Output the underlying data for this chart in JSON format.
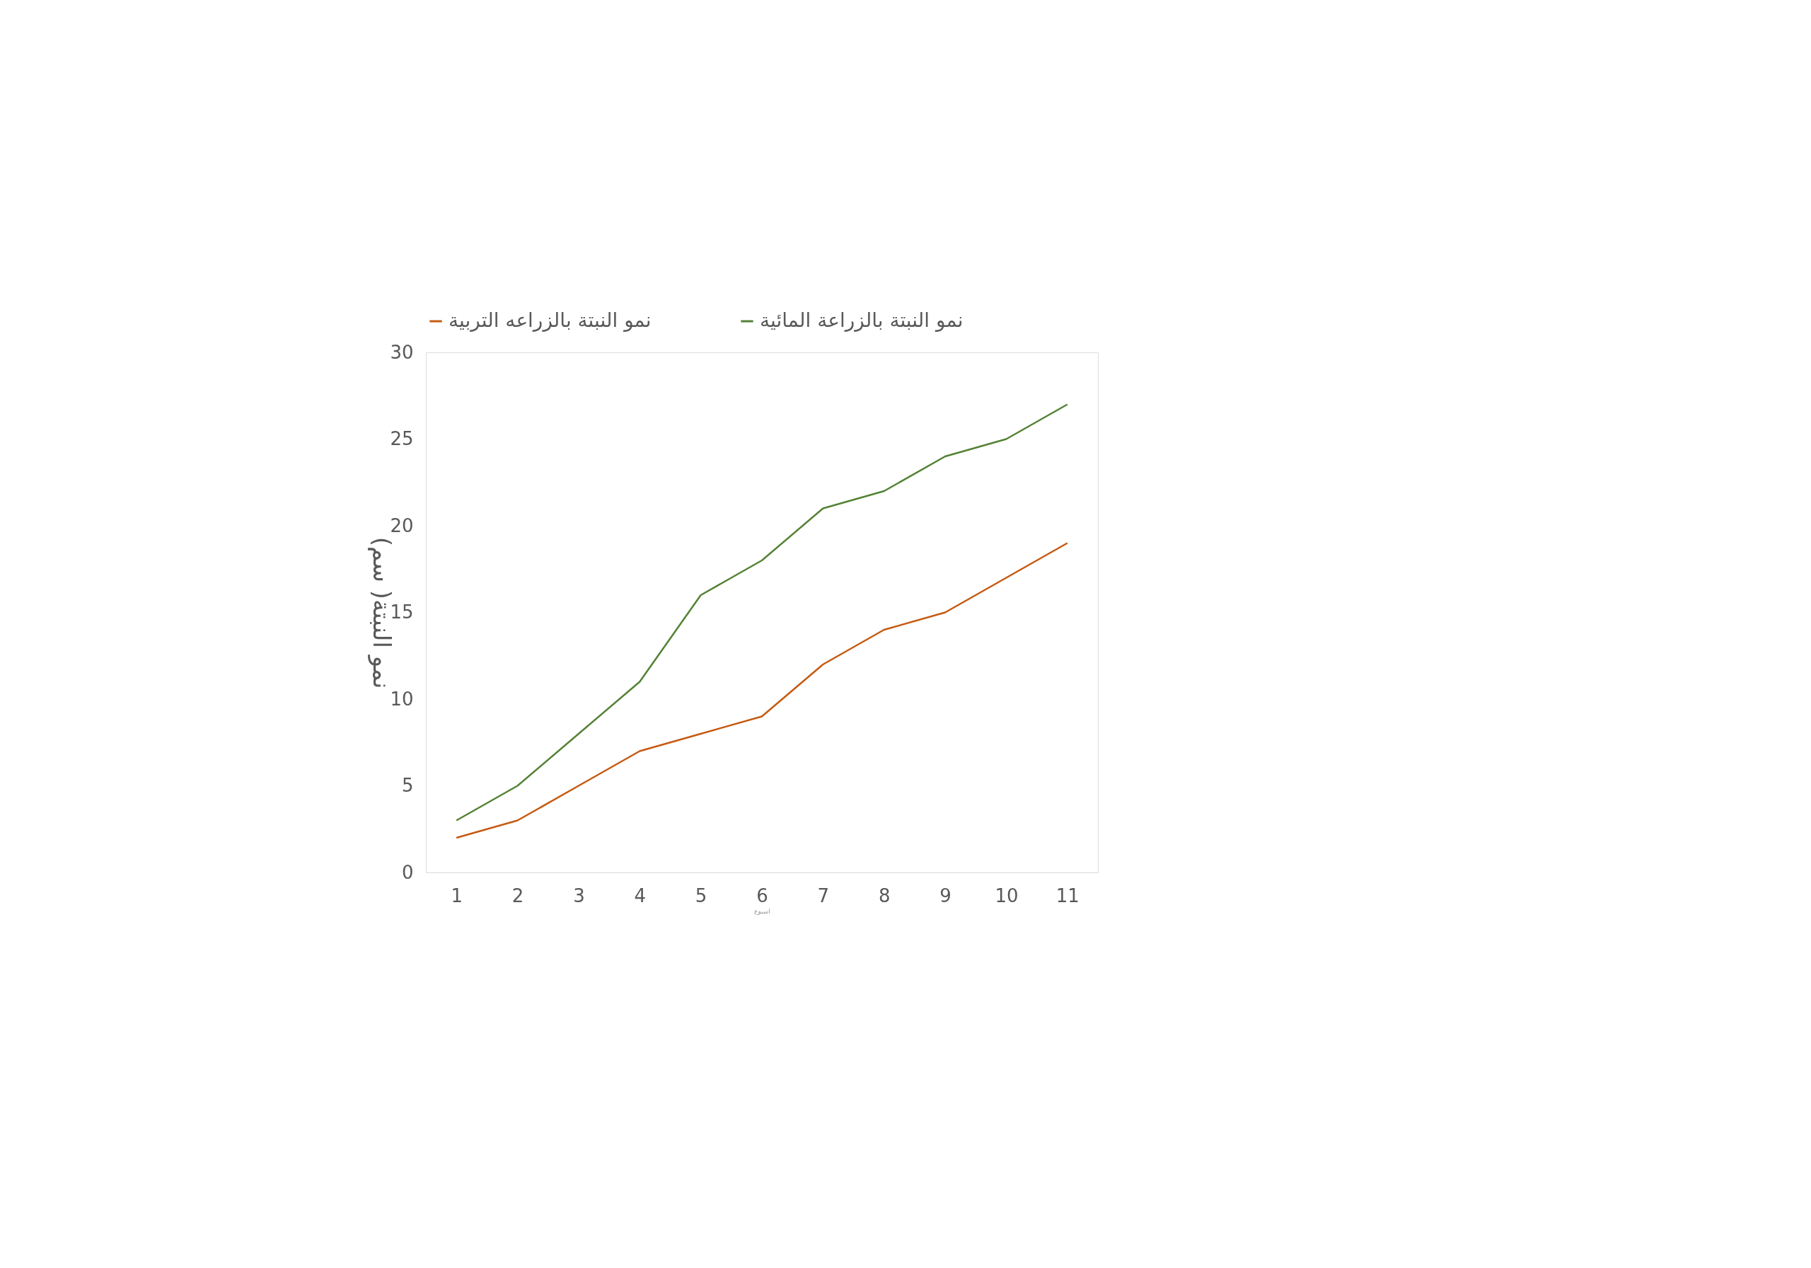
{
  "chart_data": {
    "type": "line",
    "xlabel": "اسبوع",
    "ylabel": "نمو النبتة( سم)",
    "categories": [
      "1",
      "2",
      "3",
      "4",
      "5",
      "6",
      "7",
      "8",
      "9",
      "10",
      "11"
    ],
    "series": [
      {
        "name": "نمو النبتة بالزراعة المائية",
        "color": "#548235",
        "values": [
          3,
          5,
          8,
          11,
          16,
          18,
          21,
          22,
          24,
          25,
          27
        ]
      },
      {
        "name": "نمو النبتة بالزراعه التربية",
        "color": "#c55a11",
        "values": [
          2,
          3,
          5,
          7,
          8,
          9,
          12,
          14,
          15,
          17,
          19
        ]
      }
    ],
    "ylim": [
      0,
      30
    ],
    "yticks": [
      0,
      5,
      10,
      15,
      20,
      25,
      30
    ],
    "grid": false,
    "legend": "top",
    "marker": "none",
    "line_style": "solid"
  }
}
